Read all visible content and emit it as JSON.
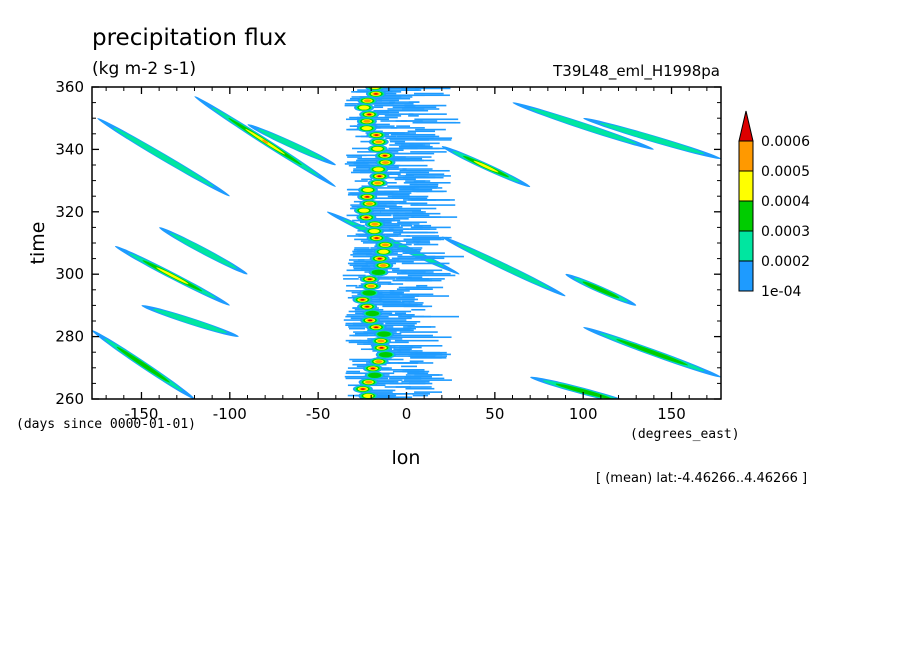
{
  "chart_data": {
    "type": "heatmap",
    "title": "precipitation flux",
    "units": "(kg m-2 s-1)",
    "run_label": "T39L48_eml_H1998pa",
    "xlabel": "lon",
    "ylabel": "time",
    "x_units_label": "(degrees_east)",
    "y_units_label": "(days since 0000-01-01)",
    "footnote": "[ (mean) lat:-4.46266..4.46266 ]",
    "xlim": [
      -178,
      178
    ],
    "ylim": [
      260,
      360
    ],
    "x_ticks": [
      -150,
      -100,
      -50,
      0,
      50,
      100,
      150
    ],
    "x_tick_labels": [
      "-150",
      "-100",
      "-50",
      "0",
      "50",
      "100",
      "150"
    ],
    "y_ticks": [
      260,
      280,
      300,
      320,
      340,
      360
    ],
    "y_tick_labels": [
      "260",
      "280",
      "300",
      "320",
      "340",
      "360"
    ],
    "colorbar": {
      "levels": [
        "1e-04",
        "0.0002",
        "0.0003",
        "0.0004",
        "0.0005",
        "0.0006"
      ],
      "colors": [
        "#1e9bff",
        "#00e6a0",
        "#00cc00",
        "#ffff00",
        "#ff9900",
        "#dd0000"
      ],
      "extend": "max"
    },
    "features": {
      "convective_band": {
        "lon_range": [
          -35,
          20
        ],
        "time_range": [
          260,
          360
        ],
        "core_lon": -18
      },
      "propagating_streaks": [
        {
          "lon": [
            -178,
            -120
          ],
          "time": [
            282,
            260
          ],
          "level": 2
        },
        {
          "lon": [
            -150,
            -95
          ],
          "time": [
            290,
            280
          ],
          "level": 1
        },
        {
          "lon": [
            -165,
            -100
          ],
          "time": [
            309,
            290
          ],
          "level": 3
        },
        {
          "lon": [
            -140,
            -90
          ],
          "time": [
            315,
            300
          ],
          "level": 1
        },
        {
          "lon": [
            -175,
            -100
          ],
          "time": [
            350,
            325
          ],
          "level": 1
        },
        {
          "lon": [
            -120,
            -40
          ],
          "time": [
            357,
            328
          ],
          "level": 4
        },
        {
          "lon": [
            -90,
            -40
          ],
          "time": [
            348,
            335
          ],
          "level": 1
        },
        {
          "lon": [
            -45,
            30
          ],
          "time": [
            320,
            300
          ],
          "level": 1
        },
        {
          "lon": [
            20,
            70
          ],
          "time": [
            341,
            328
          ],
          "level": 3
        },
        {
          "lon": [
            60,
            140
          ],
          "time": [
            355,
            340
          ],
          "level": 1
        },
        {
          "lon": [
            100,
            178
          ],
          "time": [
            350,
            337
          ],
          "level": 1
        },
        {
          "lon": [
            20,
            90
          ],
          "time": [
            312,
            293
          ],
          "level": 1
        },
        {
          "lon": [
            90,
            130
          ],
          "time": [
            300,
            290
          ],
          "level": 2
        },
        {
          "lon": [
            100,
            178
          ],
          "time": [
            283,
            267
          ],
          "level": 2
        },
        {
          "lon": [
            70,
            130
          ],
          "time": [
            267,
            258
          ],
          "level": 2
        }
      ]
    }
  }
}
